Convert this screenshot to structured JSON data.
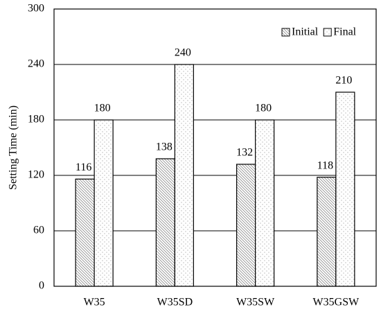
{
  "chart_data": {
    "type": "bar",
    "y_label": "Setting Time (min)",
    "categories": [
      "W35",
      "W35SD",
      "W35SW",
      "W35GSW"
    ],
    "series": [
      {
        "name": "Initial",
        "color": "#8c8c8c",
        "pattern": "hatch",
        "values": [
          116,
          138,
          132,
          118
        ]
      },
      {
        "name": "Final",
        "color": "#9a9a9a",
        "pattern": "dots",
        "values": [
          180,
          240,
          180,
          210
        ]
      }
    ],
    "ylim": [
      0,
      300
    ],
    "yticks": [
      0,
      60,
      120,
      180,
      240,
      300
    ],
    "grid": true,
    "legend": "top-right"
  }
}
